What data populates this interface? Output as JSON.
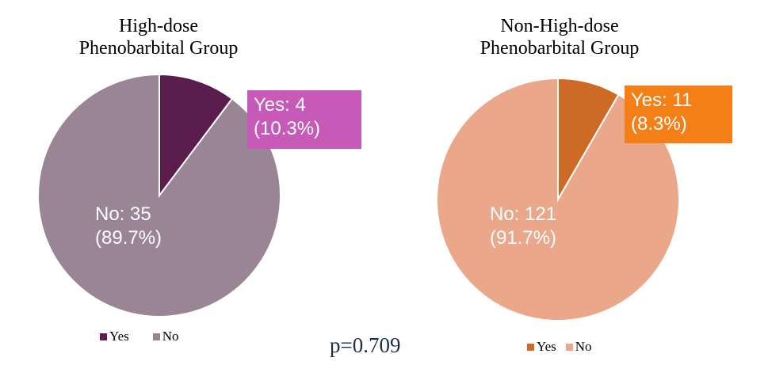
{
  "chart_data": [
    {
      "type": "pie",
      "title_lines": [
        "High-dose",
        "Phenobarbital Group"
      ],
      "categories": [
        "Yes",
        "No"
      ],
      "values": [
        4,
        35
      ],
      "percent_labels": [
        "(10.3%)",
        "(89.7%)"
      ],
      "count_labels": [
        "Yes:  4",
        "No:  35"
      ],
      "colors": [
        "#5a1d4e",
        "#9a8597"
      ],
      "callout_color": "#c759b8",
      "legend": [
        "Yes",
        "No"
      ],
      "legend_placement": "bottom"
    },
    {
      "type": "pie",
      "title_lines": [
        "Non-High-dose",
        "Phenobarbital Group"
      ],
      "categories": [
        "Yes",
        "No"
      ],
      "values": [
        11,
        121
      ],
      "percent_labels": [
        "(8.3%)",
        "(91.7%)"
      ],
      "count_labels": [
        "Yes:  11",
        "No:  121"
      ],
      "colors": [
        "#cc6a26",
        "#eaa78a"
      ],
      "callout_color": "#f57f17",
      "legend": [
        "Yes",
        "No"
      ],
      "legend_placement": "bottom"
    }
  ],
  "annotation": "p=0.709"
}
